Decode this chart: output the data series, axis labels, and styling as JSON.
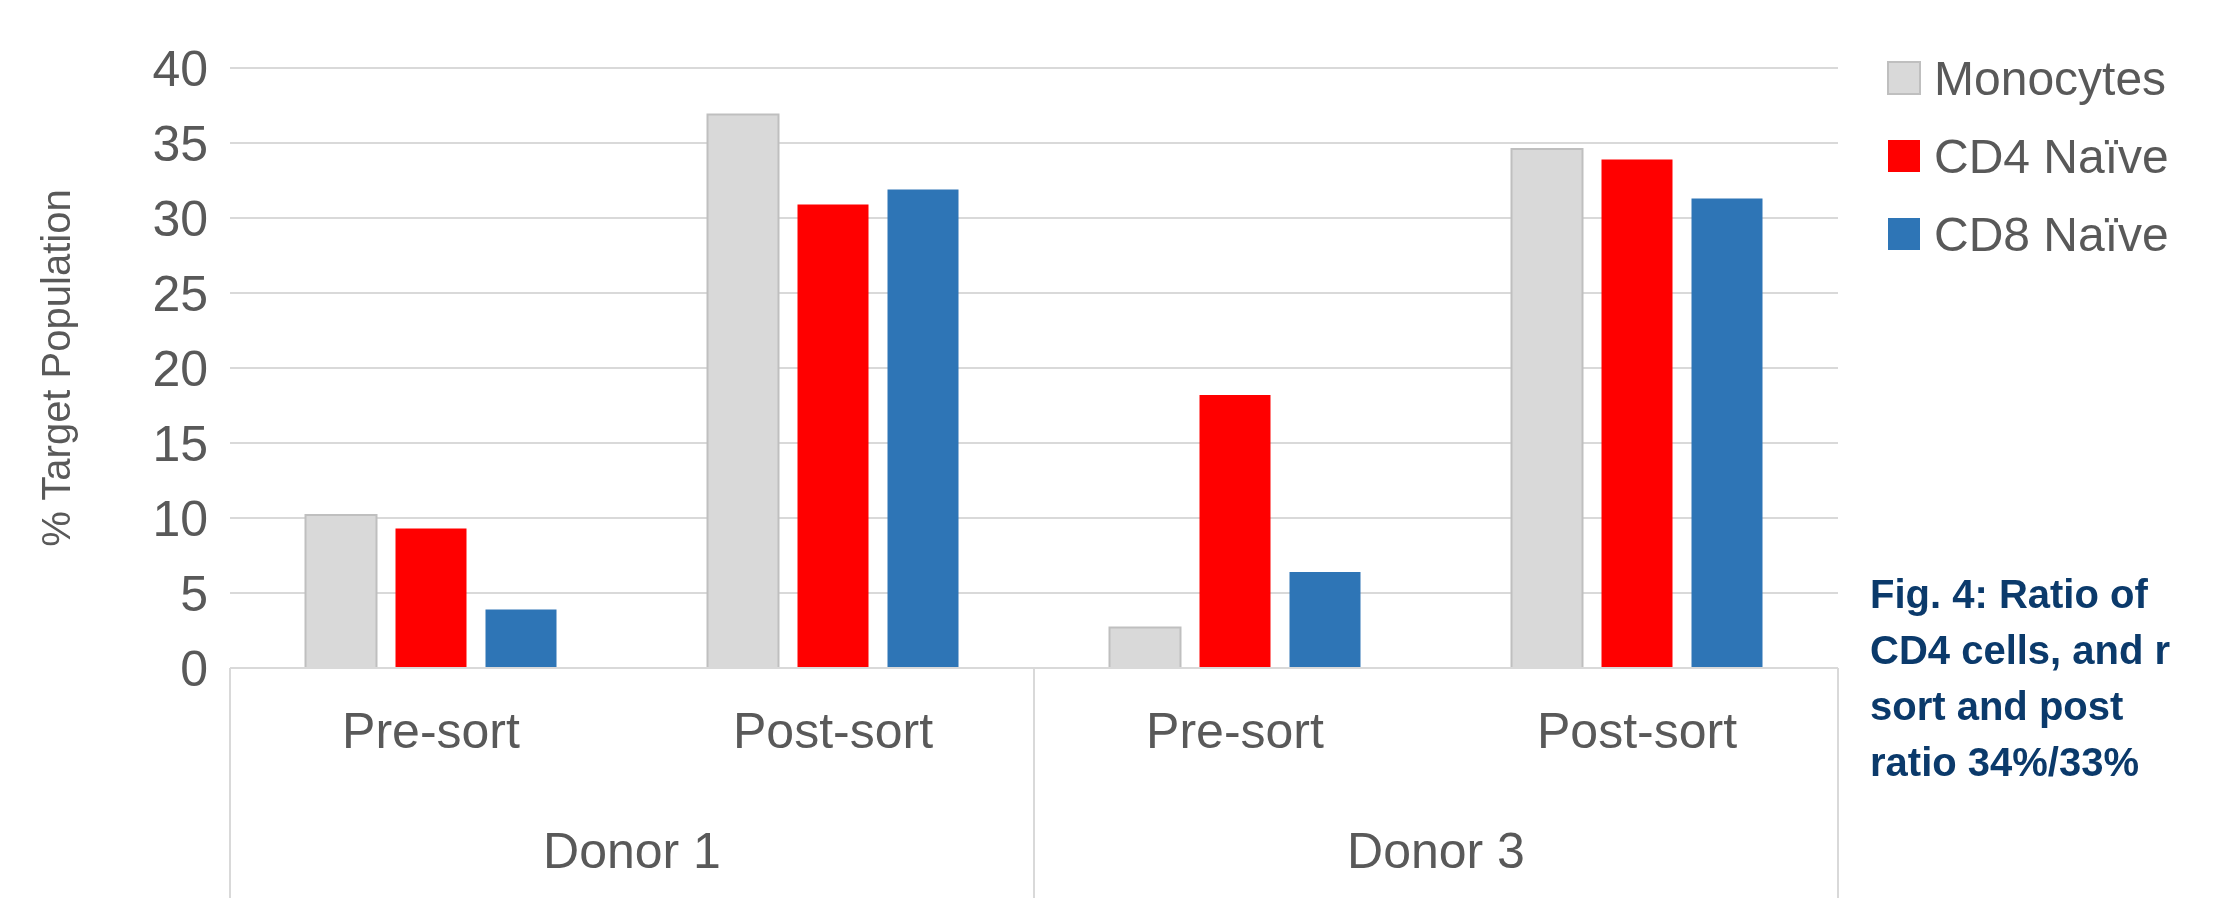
{
  "chart_data": {
    "type": "bar",
    "ylabel": "% Target Population",
    "categories": [
      "Pre-sort",
      "Post-sort",
      "Pre-sort",
      "Post-sort"
    ],
    "series": [
      {
        "name": "Monocytes",
        "color": "#d9d9d9",
        "values": [
          10.2,
          36.9,
          2.7,
          34.6
        ]
      },
      {
        "name": "CD4 Naïve",
        "color": "#ff0000",
        "values": [
          9.3,
          30.9,
          18.2,
          33.9
        ]
      },
      {
        "name": "CD8 Naïve",
        "color": "#2e75b6",
        "values": [
          3.9,
          31.9,
          6.4,
          31.3
        ]
      }
    ],
    "ylim": [
      0,
      40
    ],
    "yticks": [
      0,
      5,
      10,
      15,
      20,
      25,
      30,
      35,
      40
    ],
    "grid": "y",
    "legend": "right",
    "annotations": [
      "Donor 1",
      "Donor 3",
      "Fig. 4: Ratio of",
      "CD4 cells, and r",
      "sort and post",
      "ratio 34%/33%"
    ]
  }
}
